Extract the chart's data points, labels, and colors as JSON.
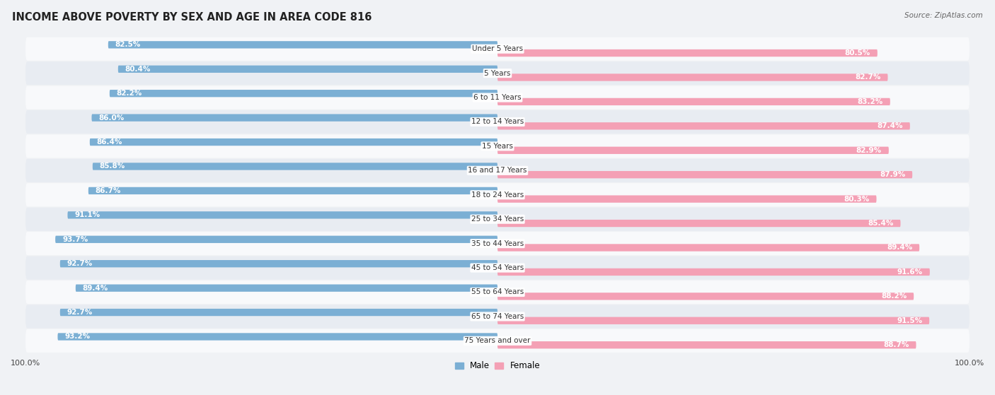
{
  "title": "INCOME ABOVE POVERTY BY SEX AND AGE IN AREA CODE 816",
  "source": "Source: ZipAtlas.com",
  "categories": [
    "Under 5 Years",
    "5 Years",
    "6 to 11 Years",
    "12 to 14 Years",
    "15 Years",
    "16 and 17 Years",
    "18 to 24 Years",
    "25 to 34 Years",
    "35 to 44 Years",
    "45 to 54 Years",
    "55 to 64 Years",
    "65 to 74 Years",
    "75 Years and over"
  ],
  "male_values": [
    82.5,
    80.4,
    82.2,
    86.0,
    86.4,
    85.8,
    86.7,
    91.1,
    93.7,
    92.7,
    89.4,
    92.7,
    93.2
  ],
  "female_values": [
    80.5,
    82.7,
    83.2,
    87.4,
    82.9,
    87.9,
    80.3,
    85.4,
    89.4,
    91.6,
    88.2,
    91.5,
    88.7
  ],
  "male_color": "#7bafd4",
  "female_color": "#f4a0b5",
  "male_label": "Male",
  "female_label": "Female",
  "background_color": "#f0f2f5",
  "row_bg_even": "#f8f9fb",
  "row_bg_odd": "#e8ecf2",
  "title_fontsize": 10.5,
  "source_fontsize": 7.5,
  "bar_label_fontsize": 7.5,
  "category_fontsize": 7.5,
  "axis_label_fontsize": 8,
  "legend_fontsize": 8.5,
  "x_max": 100.0,
  "bottom_label": "100.0%"
}
